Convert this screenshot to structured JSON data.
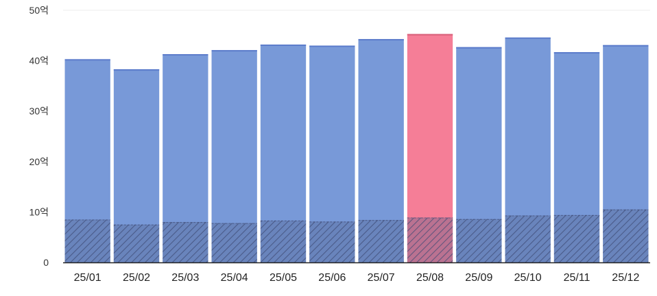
{
  "chart_data": {
    "type": "bar",
    "categories": [
      "25/01",
      "25/02",
      "25/03",
      "25/04",
      "25/05",
      "25/06",
      "25/07",
      "25/08",
      "25/09",
      "25/10",
      "25/11",
      "25/12"
    ],
    "series": [
      {
        "values": [
          40.3,
          38.3,
          41.3,
          42.1,
          43.2,
          43.0,
          44.3,
          45.3,
          42.7,
          44.6,
          41.7,
          43.1
        ]
      },
      {
        "values": [
          8.5,
          7.5,
          8.0,
          7.8,
          8.3,
          8.1,
          8.4,
          8.9,
          8.6,
          9.3,
          9.4,
          10.5
        ]
      }
    ],
    "highlight_category": "25/08",
    "yticks": [
      {
        "value": 0,
        "label": "0"
      },
      {
        "value": 10,
        "label": "10억"
      },
      {
        "value": 20,
        "label": "20억"
      },
      {
        "value": 30,
        "label": "30억"
      },
      {
        "value": 40,
        "label": "40억"
      },
      {
        "value": 50,
        "label": "50억"
      }
    ],
    "ylim": [
      0,
      50
    ],
    "title": "",
    "xlabel": "",
    "ylabel": "",
    "grid": false,
    "colors": {
      "bar": "#7899d8",
      "highlight": "#f57e97",
      "hatch": "#4d5a85",
      "axis": "#333333"
    }
  }
}
